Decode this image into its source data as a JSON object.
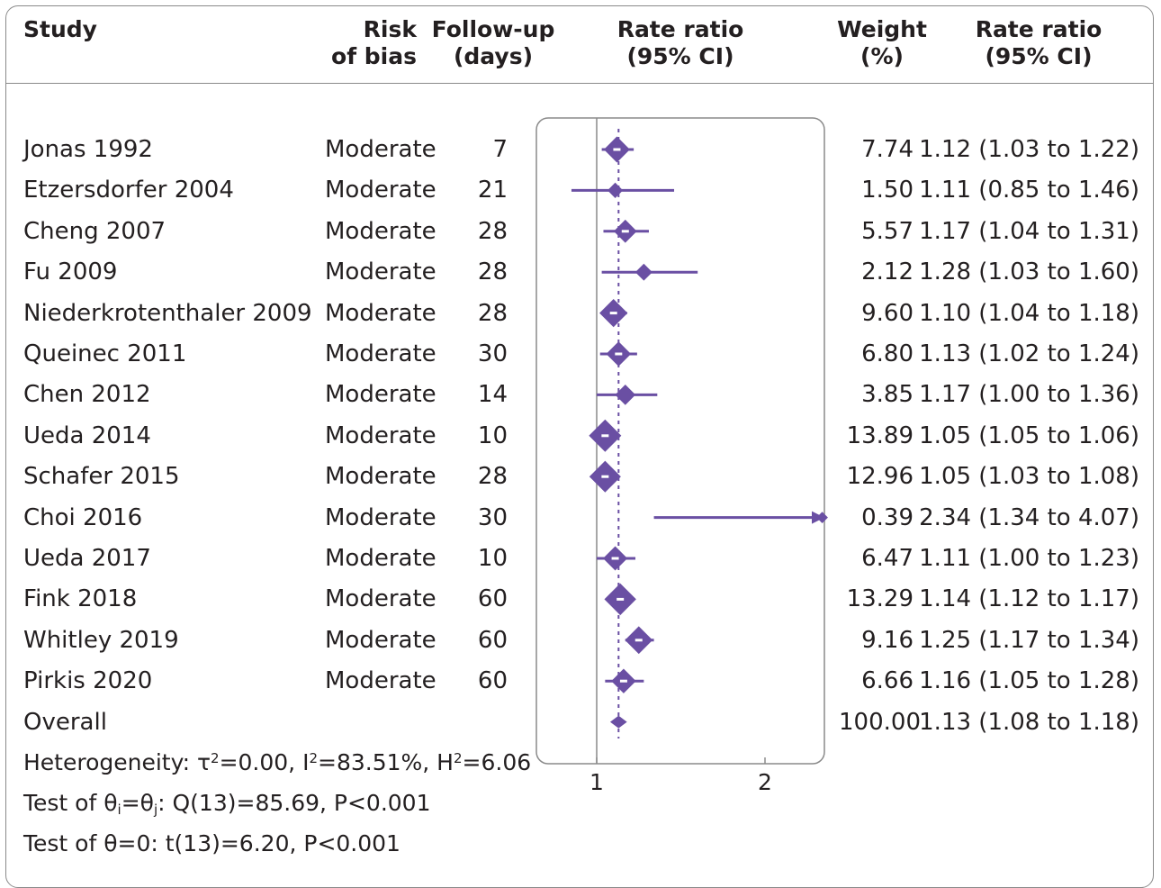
{
  "headers": {
    "study": "Study",
    "risk_of_bias": [
      "Risk",
      "of bias"
    ],
    "follow_up": [
      "Follow-up",
      "(days)"
    ],
    "rate_ratio_plot": [
      "Rate ratio",
      "(95% CI)"
    ],
    "weight": [
      "Weight",
      "(%)"
    ],
    "rate_ratio_text": [
      "Rate ratio",
      "(95% CI)"
    ]
  },
  "chart_data": {
    "type": "forest",
    "x_ticks": [
      1,
      2
    ],
    "reference_line": 1,
    "overall_line": 1.13,
    "studies": [
      {
        "name": "Jonas 1992",
        "risk": "Moderate",
        "followup": "7",
        "weight": "7.74",
        "ci_text": "1.12 (1.03 to 1.22)",
        "rr": 1.12,
        "lo": 1.03,
        "hi": 1.22,
        "w": 7.74
      },
      {
        "name": "Etzersdorfer 2004",
        "risk": "Moderate",
        "followup": "21",
        "weight": "1.50",
        "ci_text": "1.11 (0.85 to 1.46)",
        "rr": 1.11,
        "lo": 0.85,
        "hi": 1.46,
        "w": 1.5
      },
      {
        "name": "Cheng 2007",
        "risk": "Moderate",
        "followup": "28",
        "weight": "5.57",
        "ci_text": "1.17 (1.04 to 1.31)",
        "rr": 1.17,
        "lo": 1.04,
        "hi": 1.31,
        "w": 5.57
      },
      {
        "name": "Fu 2009",
        "risk": "Moderate",
        "followup": "28",
        "weight": "2.12",
        "ci_text": "1.28 (1.03 to 1.60)",
        "rr": 1.28,
        "lo": 1.03,
        "hi": 1.6,
        "w": 2.12
      },
      {
        "name": "Niederkrotenthaler 2009",
        "risk": "Moderate",
        "followup": "28",
        "weight": "9.60",
        "ci_text": "1.10 (1.04 to 1.18)",
        "rr": 1.1,
        "lo": 1.04,
        "hi": 1.18,
        "w": 9.6
      },
      {
        "name": "Queinec 2011",
        "risk": "Moderate",
        "followup": "30",
        "weight": "6.80",
        "ci_text": "1.13 (1.02 to 1.24)",
        "rr": 1.13,
        "lo": 1.02,
        "hi": 1.24,
        "w": 6.8
      },
      {
        "name": "Chen 2012",
        "risk": "Moderate",
        "followup": "14",
        "weight": "3.85",
        "ci_text": "1.17 (1.00 to 1.36)",
        "rr": 1.17,
        "lo": 1.0,
        "hi": 1.36,
        "w": 3.85
      },
      {
        "name": "Ueda 2014",
        "risk": "Moderate",
        "followup": "10",
        "weight": "13.89",
        "ci_text": "1.05 (1.05 to 1.06)",
        "rr": 1.05,
        "lo": 1.05,
        "hi": 1.06,
        "w": 13.89
      },
      {
        "name": "Schafer 2015",
        "risk": "Moderate",
        "followup": "28",
        "weight": "12.96",
        "ci_text": "1.05 (1.03 to 1.08)",
        "rr": 1.05,
        "lo": 1.03,
        "hi": 1.08,
        "w": 12.96
      },
      {
        "name": "Choi 2016",
        "risk": "Moderate",
        "followup": "30",
        "weight": "0.39",
        "ci_text": "2.34 (1.34 to 4.07)",
        "rr": 2.34,
        "lo": 1.34,
        "hi": 4.07,
        "w": 0.39,
        "truncated": true
      },
      {
        "name": "Ueda 2017",
        "risk": "Moderate",
        "followup": "10",
        "weight": "6.47",
        "ci_text": "1.11 (1.00 to 1.23)",
        "rr": 1.11,
        "lo": 1.0,
        "hi": 1.23,
        "w": 6.47
      },
      {
        "name": "Fink 2018",
        "risk": "Moderate",
        "followup": "60",
        "weight": "13.29",
        "ci_text": "1.14 (1.12 to 1.17)",
        "rr": 1.14,
        "lo": 1.12,
        "hi": 1.17,
        "w": 13.29
      },
      {
        "name": "Whitley 2019",
        "risk": "Moderate",
        "followup": "60",
        "weight": "9.16",
        "ci_text": "1.25 (1.17 to 1.34)",
        "rr": 1.25,
        "lo": 1.17,
        "hi": 1.34,
        "w": 9.16
      },
      {
        "name": "Pirkis 2020",
        "risk": "Moderate",
        "followup": "60",
        "weight": "6.66",
        "ci_text": "1.16 (1.05 to 1.28)",
        "rr": 1.16,
        "lo": 1.05,
        "hi": 1.28,
        "w": 6.66
      }
    ],
    "overall": {
      "name": "Overall",
      "weight": "100.00",
      "ci_text": "1.13 (1.08 to 1.18)",
      "rr": 1.13,
      "lo": 1.08,
      "hi": 1.18
    },
    "colors": {
      "marker": "#6a4fa3",
      "axis": "#8a8a8a",
      "text": "#231f20"
    }
  },
  "stats": {
    "heterogeneity": {
      "prefix": "Heterogeneity: τ",
      "tau_exp": "2",
      "tau_val": "=0.00, I",
      "i_exp": "2",
      "i_val": "=83.51%, H",
      "h_exp": "2",
      "h_val": "=6.06"
    },
    "test_theta_equal": {
      "prefix": "Test of θ",
      "sub_i": "i",
      "eq": "=θ",
      "sub_j": "j",
      "suffix": ": Q(13)=85.69, P<0.001"
    },
    "test_theta_zero": "Test of θ=0: t(13)=6.20, P<0.001"
  }
}
